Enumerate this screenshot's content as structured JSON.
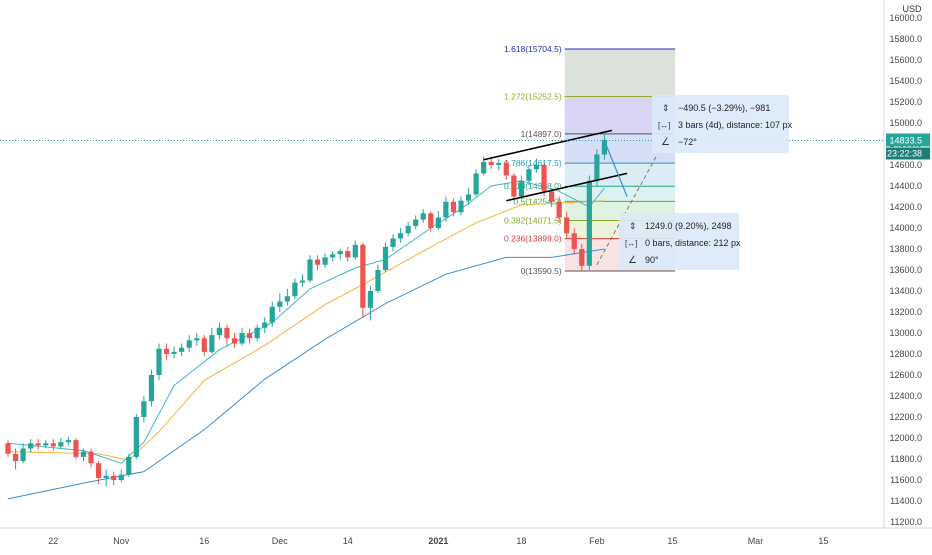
{
  "header": {
    "currency": "USD"
  },
  "price_labels": {
    "last": "14833.5",
    "countdown": "23:22:38"
  },
  "measure_boxes": [
    {
      "price_line": "−490.5 (−3.29%), −981",
      "bars_line": "3 bars (4d), distance: 107 px",
      "angle_line": "−72°"
    },
    {
      "price_line": "1249.0 (9.20%), 2498",
      "bars_line": "0 bars, distance: 212 px",
      "angle_line": "90°"
    }
  ],
  "fib_levels": [
    {
      "label": "1.618(15704.5)",
      "value": 15704.5,
      "color": "#1f2fb0"
    },
    {
      "label": "1.272(15252.5)",
      "value": 15252.5,
      "color": "#9aa82a"
    },
    {
      "label": "1(14897.0)",
      "value": 14897.0,
      "color": "#555555"
    },
    {
      "label": "0.786(14617.5)",
      "value": 14617.5,
      "color": "#1e9fb6"
    },
    {
      "label": "0.618(14398.0)",
      "value": 14398.0,
      "color": "#1fa882"
    },
    {
      "label": "0.5(14254.0)",
      "value": 14254.0,
      "color": "#4caf50"
    },
    {
      "label": "0.382(14071.5)",
      "value": 14071.5,
      "color": "#8aa824"
    },
    {
      "label": "0.236(13899.0)",
      "value": 13899.0,
      "color": "#e33a3a"
    },
    {
      "label": "0(13590.5)",
      "value": 13590.5,
      "color": "#555555"
    }
  ],
  "chart_data": {
    "type": "candlestick",
    "y_axis": {
      "ticks": [
        11200,
        11400,
        11600,
        11800,
        12000,
        12200,
        12400,
        12600,
        12800,
        13000,
        13200,
        13400,
        13600,
        13800,
        14000,
        14200,
        14400,
        14600,
        14800,
        15000,
        15200,
        15400,
        15600,
        15800,
        16000
      ],
      "tick_labels": [
        "11200.0",
        "11400.0",
        "11600.0",
        "11800.0",
        "12000.0",
        "12200.0",
        "12400.0",
        "12600.0",
        "12800.0",
        "13000.0",
        "13200.0",
        "13400.0",
        "13600.0",
        "13800.0",
        "14000.0",
        "14200.0",
        "14400.0",
        "14600.0",
        "14800.0",
        "15000.0",
        "15200.0",
        "15400.0",
        "15600.0",
        "15800.0",
        "16000.0"
      ],
      "range": [
        11100,
        16150
      ]
    },
    "x_axis": {
      "labels": [
        {
          "text": "22",
          "bar": 6
        },
        {
          "text": "Nov",
          "bar": 15
        },
        {
          "text": "16",
          "bar": 26
        },
        {
          "text": "Dec",
          "bar": 36
        },
        {
          "text": "14",
          "bar": 45
        },
        {
          "text": "2021",
          "bar": 57
        },
        {
          "text": "18",
          "bar": 68
        },
        {
          "text": "Feb",
          "bar": 78
        },
        {
          "text": "15",
          "bar": 88
        },
        {
          "text": "Mar",
          "bar": 99
        },
        {
          "text": "15",
          "bar": 108
        }
      ]
    },
    "last_price": 14833.5,
    "candles": [
      [
        11950,
        11850,
        11980,
        11820
      ],
      [
        11850,
        11780,
        11900,
        11700
      ],
      [
        11780,
        11900,
        11950,
        11760
      ],
      [
        11900,
        11950,
        11990,
        11860
      ],
      [
        11950,
        11930,
        11990,
        11890
      ],
      [
        11930,
        11950,
        11980,
        11900
      ],
      [
        11950,
        11920,
        11990,
        11880
      ],
      [
        11920,
        11960,
        12000,
        11900
      ],
      [
        11960,
        11980,
        12010,
        11930
      ],
      [
        11980,
        11820,
        12000,
        11800
      ],
      [
        11820,
        11870,
        11900,
        11780
      ],
      [
        11870,
        11760,
        11900,
        11720
      ],
      [
        11760,
        11620,
        11780,
        11560
      ],
      [
        11620,
        11640,
        11700,
        11540
      ],
      [
        11640,
        11600,
        11680,
        11550
      ],
      [
        11600,
        11650,
        11700,
        11580
      ],
      [
        11650,
        11820,
        11850,
        11630
      ],
      [
        11820,
        12200,
        12230,
        11800
      ],
      [
        12200,
        12350,
        12400,
        12150
      ],
      [
        12350,
        12600,
        12650,
        12300
      ],
      [
        12600,
        12850,
        12900,
        12550
      ],
      [
        12850,
        12800,
        12900,
        12740
      ],
      [
        12800,
        12820,
        12870,
        12760
      ],
      [
        12820,
        12860,
        12900,
        12780
      ],
      [
        12860,
        12930,
        12980,
        12820
      ],
      [
        12930,
        12950,
        13000,
        12880
      ],
      [
        12950,
        12820,
        12980,
        12780
      ],
      [
        12820,
        12980,
        13050,
        12800
      ],
      [
        12980,
        13050,
        13100,
        12940
      ],
      [
        13050,
        12950,
        13080,
        12880
      ],
      [
        12950,
        12900,
        13000,
        12860
      ],
      [
        12900,
        13000,
        13050,
        12880
      ],
      [
        13000,
        12950,
        13040,
        12900
      ],
      [
        12950,
        13050,
        13080,
        12920
      ],
      [
        13050,
        13100,
        13150,
        13000
      ],
      [
        13100,
        13250,
        13300,
        13060
      ],
      [
        13250,
        13300,
        13380,
        13200
      ],
      [
        13300,
        13350,
        13420,
        13260
      ],
      [
        13350,
        13480,
        13520,
        13320
      ],
      [
        13480,
        13500,
        13560,
        13440
      ],
      [
        13500,
        13700,
        13740,
        13480
      ],
      [
        13700,
        13650,
        13740,
        13600
      ],
      [
        13650,
        13720,
        13760,
        13620
      ],
      [
        13720,
        13750,
        13780,
        13680
      ],
      [
        13750,
        13780,
        13800,
        13700
      ],
      [
        13780,
        13720,
        13820,
        13680
      ],
      [
        13720,
        13840,
        13880,
        13700
      ],
      [
        13840,
        13240,
        13860,
        13150
      ],
      [
        13240,
        13400,
        13450,
        13120
      ],
      [
        13400,
        13600,
        13650,
        13380
      ],
      [
        13600,
        13820,
        13860,
        13580
      ],
      [
        13820,
        13900,
        13940,
        13780
      ],
      [
        13900,
        13950,
        14000,
        13860
      ],
      [
        13950,
        14020,
        14060,
        13920
      ],
      [
        14020,
        14080,
        14120,
        13990
      ],
      [
        14080,
        14140,
        14180,
        14050
      ],
      [
        14140,
        14000,
        14160,
        13960
      ],
      [
        14000,
        14100,
        14160,
        13980
      ],
      [
        14100,
        14250,
        14300,
        14060
      ],
      [
        14250,
        14150,
        14280,
        14110
      ],
      [
        14150,
        14260,
        14300,
        14120
      ],
      [
        14260,
        14320,
        14380,
        14220
      ],
      [
        14320,
        14520,
        14560,
        14300
      ],
      [
        14520,
        14630,
        14680,
        14500
      ],
      [
        14630,
        14600,
        14680,
        14560
      ],
      [
        14600,
        14620,
        14660,
        14550
      ],
      [
        14620,
        14500,
        14650,
        14460
      ],
      [
        14500,
        14300,
        14520,
        14260
      ],
      [
        14300,
        14450,
        14500,
        14280
      ],
      [
        14450,
        14560,
        14600,
        14410
      ],
      [
        14560,
        14600,
        14660,
        14530
      ],
      [
        14600,
        14350,
        14620,
        14300
      ],
      [
        14350,
        14250,
        14380,
        14200
      ],
      [
        14250,
        14100,
        14300,
        14050
      ],
      [
        14100,
        13950,
        14150,
        13900
      ],
      [
        13950,
        13800,
        14000,
        13750
      ],
      [
        13800,
        13640,
        13850,
        13590
      ],
      [
        13640,
        14450,
        14500,
        13600
      ],
      [
        14450,
        14700,
        14750,
        14400
      ],
      [
        14700,
        14840,
        14900,
        14650
      ]
    ],
    "ema_fast": [
      [
        0,
        11950
      ],
      [
        10,
        11880
      ],
      [
        15,
        11760
      ],
      [
        18,
        11960
      ],
      [
        22,
        12500
      ],
      [
        28,
        12840
      ],
      [
        35,
        13100
      ],
      [
        40,
        13420
      ],
      [
        46,
        13620
      ],
      [
        50,
        13700
      ],
      [
        56,
        14000
      ],
      [
        60,
        14180
      ],
      [
        64,
        14400
      ],
      [
        68,
        14450
      ],
      [
        73,
        14350
      ],
      [
        77,
        14200
      ],
      [
        79,
        14380
      ]
    ],
    "ema_mid": [
      [
        0,
        11870
      ],
      [
        12,
        11850
      ],
      [
        16,
        11790
      ],
      [
        20,
        12060
      ],
      [
        26,
        12550
      ],
      [
        34,
        12880
      ],
      [
        42,
        13270
      ],
      [
        48,
        13500
      ],
      [
        56,
        13820
      ],
      [
        62,
        14050
      ],
      [
        68,
        14220
      ],
      [
        74,
        14240
      ],
      [
        79,
        14260
      ]
    ],
    "sma_slow": [
      [
        0,
        11420
      ],
      [
        10,
        11570
      ],
      [
        18,
        11680
      ],
      [
        26,
        12080
      ],
      [
        34,
        12560
      ],
      [
        42,
        12940
      ],
      [
        50,
        13280
      ],
      [
        58,
        13560
      ],
      [
        66,
        13720
      ],
      [
        72,
        13720
      ],
      [
        79,
        13800
      ]
    ],
    "trendlines": [
      {
        "from": [
          63,
          14650
        ],
        "to": [
          80,
          14930
        ]
      },
      {
        "from": [
          66,
          14260
        ],
        "to": [
          82,
          14520
        ]
      }
    ],
    "projection": [
      [
        79,
        14830
      ],
      [
        82,
        14300
      ]
    ],
    "fib_zone_x": [
      74,
      82
    ]
  }
}
